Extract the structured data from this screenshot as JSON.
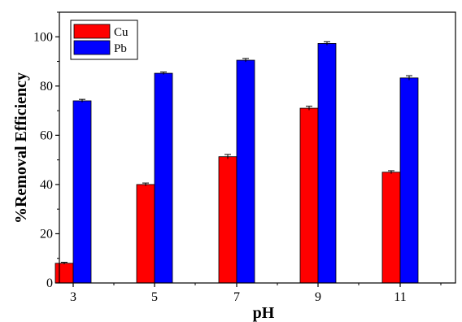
{
  "chart_data": {
    "type": "bar",
    "categories": [
      "3",
      "5",
      "7",
      "9",
      "11"
    ],
    "series": [
      {
        "name": "Cu",
        "color": "#ff0000",
        "values": [
          8,
          40,
          51.3,
          71,
          45
        ],
        "errors": [
          0.4,
          0.6,
          0.9,
          0.8,
          0.6
        ]
      },
      {
        "name": "Pb",
        "color": "#0000ff",
        "values": [
          74,
          85.2,
          90.5,
          97.3,
          83.3
        ],
        "errors": [
          0.6,
          0.5,
          0.7,
          0.7,
          0.9
        ]
      }
    ],
    "xlabel": "pH",
    "ylabel": "%Removal Efficiency",
    "ylim": [
      0,
      110
    ],
    "yticks": [
      "0",
      "20",
      "40",
      "60",
      "80",
      "100"
    ],
    "legend_position": "top-left",
    "grid": false
  }
}
